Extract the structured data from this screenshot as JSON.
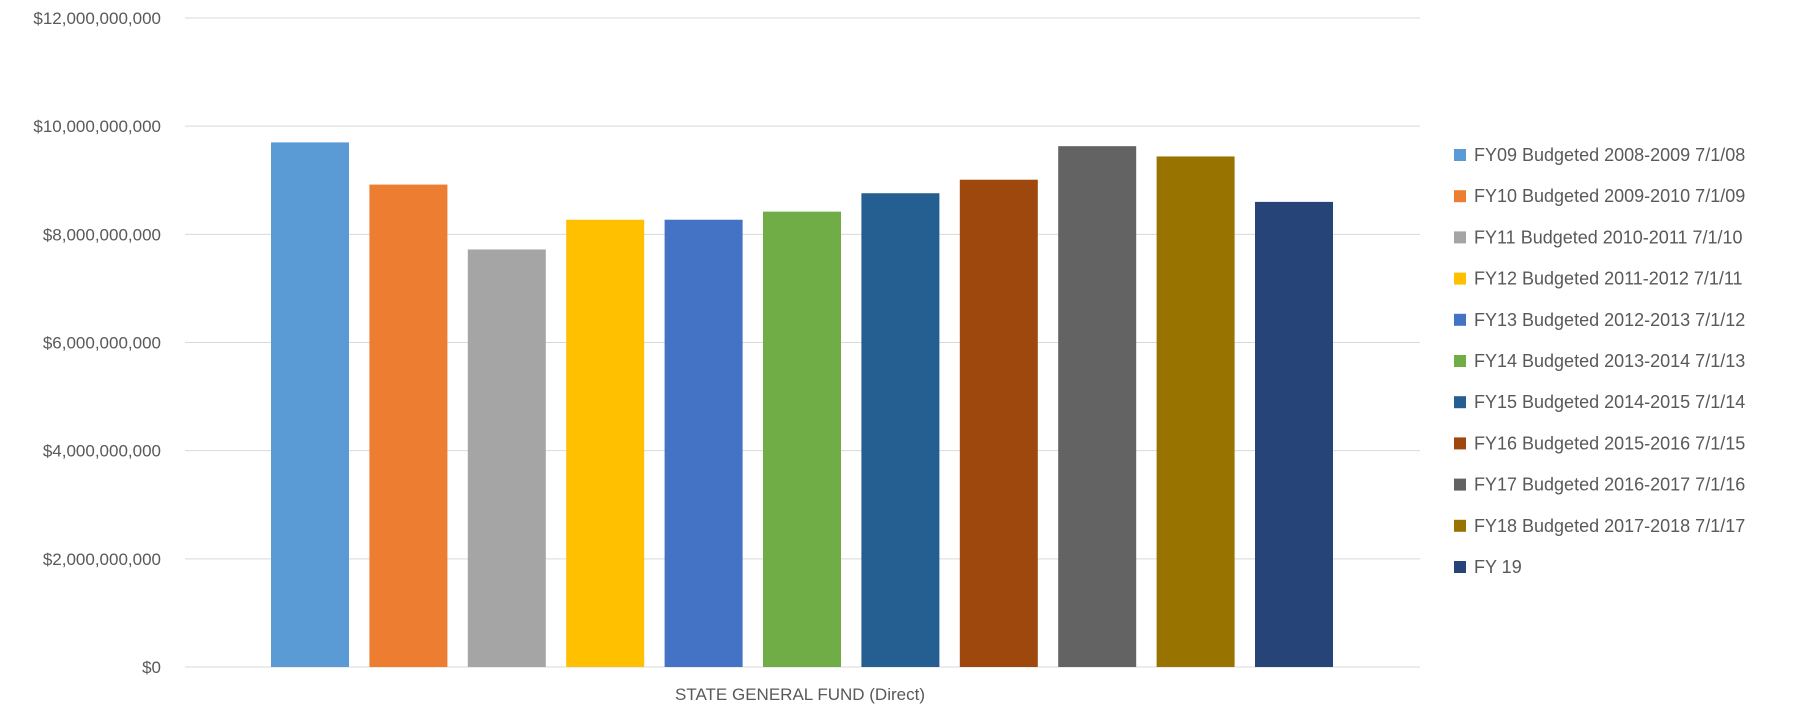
{
  "chart_data": {
    "type": "bar",
    "categories": [
      "STATE GENERAL FUND (Direct)"
    ],
    "series": [
      {
        "name": "FY09 Budgeted 2008-2009 7/1/08",
        "values": [
          9700000000
        ],
        "color": "#5B9BD5"
      },
      {
        "name": "FY10 Budgeted 2009-2010 7/1/09",
        "values": [
          8920000000
        ],
        "color": "#ED7D31"
      },
      {
        "name": "FY11 Budgeted 2010-2011 7/1/10",
        "values": [
          7720000000
        ],
        "color": "#A5A5A5"
      },
      {
        "name": "FY12 Budgeted 2011-2012 7/1/11",
        "values": [
          8270000000
        ],
        "color": "#FFC000"
      },
      {
        "name": "FY13 Budgeted 2012-2013 7/1/12",
        "values": [
          8270000000
        ],
        "color": "#4472C4"
      },
      {
        "name": "FY14 Budgeted 2013-2014 7/1/13",
        "values": [
          8420000000
        ],
        "color": "#70AD47"
      },
      {
        "name": "FY15 Budgeted 2014-2015 7/1/14",
        "values": [
          8760000000
        ],
        "color": "#255E91"
      },
      {
        "name": "FY16 Budgeted 2015-2016 7/1/15",
        "values": [
          9010000000
        ],
        "color": "#9E480E"
      },
      {
        "name": "FY17 Budgeted 2016-2017 7/1/16",
        "values": [
          9630000000
        ],
        "color": "#636363"
      },
      {
        "name": "FY18 Budgeted 2017-2018 7/1/17",
        "values": [
          9440000000
        ],
        "color": "#997300"
      },
      {
        "name": "FY 19",
        "values": [
          8600000000
        ],
        "color": "#264478"
      }
    ],
    "y_ticks": [
      "$0",
      "$2,000,000,000",
      "$4,000,000,000",
      "$6,000,000,000",
      "$8,000,000,000",
      "$10,000,000,000",
      "$12,000,000,000"
    ],
    "ylim": [
      0,
      12000000000
    ],
    "grid": true,
    "legend_position": "right"
  }
}
